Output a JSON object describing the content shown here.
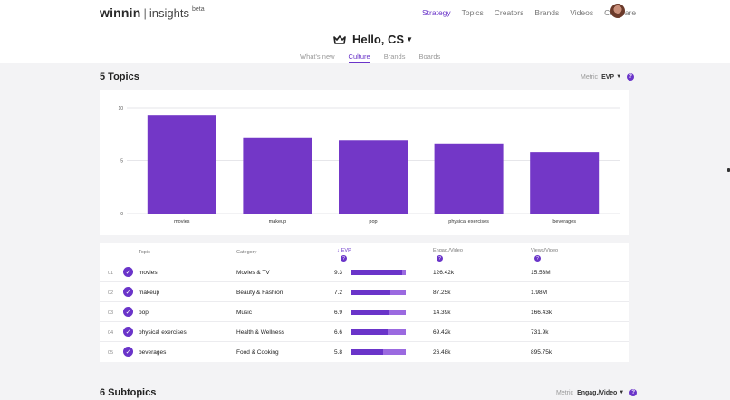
{
  "header": {
    "logo_main": "winnin",
    "logo_sep": "|",
    "logo_sub": "insights",
    "logo_beta": "beta",
    "nav": [
      "Strategy",
      "Topics",
      "Creators",
      "Brands",
      "Videos",
      "Compare"
    ],
    "greeting": "Hello, CS",
    "subtabs": [
      "What's new",
      "Culture",
      "Brands",
      "Boards"
    ]
  },
  "topics_section": {
    "title": "5 Topics",
    "metric_label": "Metric",
    "metric_value": "EVP",
    "help": "?"
  },
  "chart_data": {
    "type": "bar",
    "categories": [
      "movies",
      "makeup",
      "pop",
      "physical exercises",
      "beverages"
    ],
    "values": [
      9.3,
      7.2,
      6.9,
      6.6,
      5.8
    ],
    "ylim": [
      0,
      10
    ],
    "yticks": [
      "0",
      "5",
      "10"
    ],
    "grid": true,
    "color": "#7337c7"
  },
  "table": {
    "headers": {
      "topic": "Topic",
      "category": "Category",
      "evp": "EVP",
      "engag": "Engag./Video",
      "views": "Views/Video",
      "help": "?"
    },
    "rows": [
      {
        "rank": "01",
        "topic": "movies",
        "category": "Movies & TV",
        "evp": "9.3",
        "engag": "126.42k",
        "views": "15.53M"
      },
      {
        "rank": "02",
        "topic": "makeup",
        "category": "Beauty & Fashion",
        "evp": "7.2",
        "engag": "87.25k",
        "views": "1.98M"
      },
      {
        "rank": "03",
        "topic": "pop",
        "category": "Music",
        "evp": "6.9",
        "engag": "14.39k",
        "views": "166.43k"
      },
      {
        "rank": "04",
        "topic": "physical exercises",
        "category": "Health & Wellness",
        "evp": "6.6",
        "engag": "69.42k",
        "views": "731.9k"
      },
      {
        "rank": "05",
        "topic": "beverages",
        "category": "Food & Cooking",
        "evp": "5.8",
        "engag": "26.48k",
        "views": "895.75k"
      }
    ]
  },
  "subtopics_section": {
    "title": "6 Subtopics",
    "metric_label": "Metric",
    "metric_value": "Engag./Video",
    "help": "?"
  },
  "colors": {
    "accent": "#6a34c9",
    "bar": "#7337c7",
    "bar_track": "#9b6ae0",
    "background": "#f3f3f5"
  }
}
